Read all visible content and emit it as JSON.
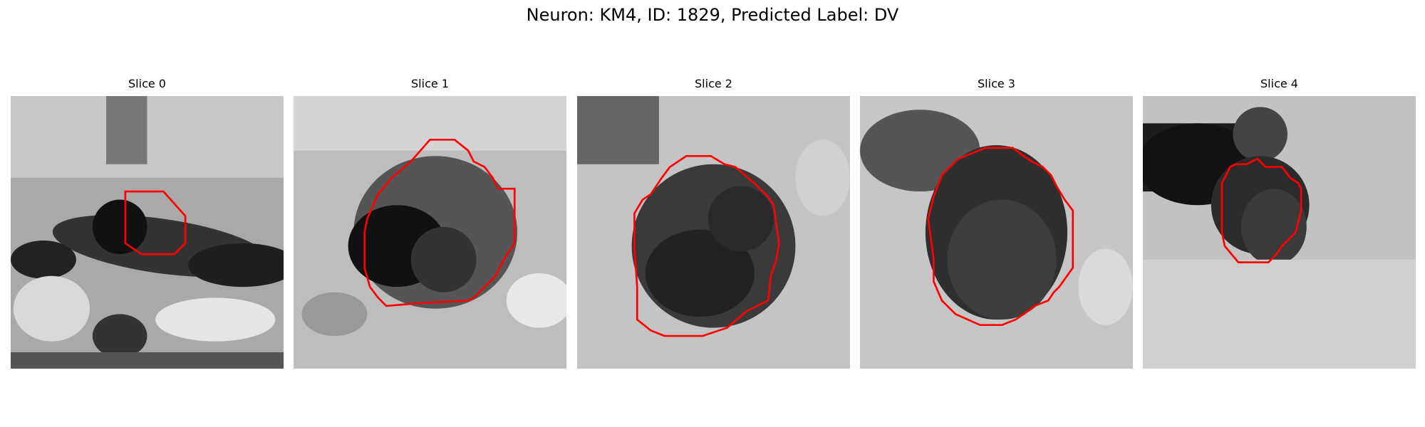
{
  "figure": {
    "title": "Neuron: KM4, ID: 1829, Predicted Label: DV",
    "contour_color": "#ff0000"
  },
  "panels": [
    {
      "title": "Slice 0"
    },
    {
      "title": "Slice 1"
    },
    {
      "title": "Slice 2"
    },
    {
      "title": "Slice 3"
    },
    {
      "title": "Slice 4"
    }
  ]
}
